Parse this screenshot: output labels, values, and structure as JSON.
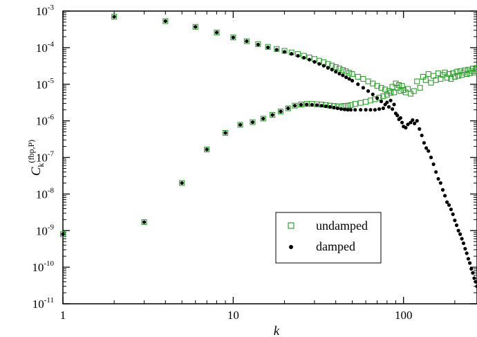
{
  "chart_data": {
    "type": "scatter",
    "xlabel": "k",
    "ylabel": {
      "main": "C",
      "sub": "k",
      "sup": "(fbp,P)"
    },
    "xscale": "log",
    "yscale": "log",
    "xlim": [
      1,
      270
    ],
    "ylim": [
      1e-11,
      0.001
    ],
    "x_ticks": [
      {
        "value": 1,
        "label": "1"
      },
      {
        "value": 10,
        "label": "10"
      },
      {
        "value": 100,
        "label": "100"
      }
    ],
    "y_ticks": [
      {
        "value": 1e-11,
        "base": "10",
        "exp": "-11"
      },
      {
        "value": 1e-10,
        "base": "10",
        "exp": "-10"
      },
      {
        "value": 1e-09,
        "base": "10",
        "exp": "-9"
      },
      {
        "value": 1e-08,
        "base": "10",
        "exp": "-8"
      },
      {
        "value": 1e-07,
        "base": "10",
        "exp": "-7"
      },
      {
        "value": 1e-06,
        "base": "10",
        "exp": "-6"
      },
      {
        "value": 1e-05,
        "base": "10",
        "exp": "-5"
      },
      {
        "value": 0.0001,
        "base": "10",
        "exp": "-4"
      },
      {
        "value": 0.001,
        "base": "10",
        "exp": "-3"
      }
    ],
    "grid": false,
    "legend_position": "bottom-right",
    "series": [
      {
        "name": "undamped",
        "marker": "open-square",
        "color": "#2e9e2e",
        "points": [
          [
            1,
            8e-10
          ],
          [
            2,
            0.0007
          ],
          [
            3,
            1.7e-09
          ],
          [
            4,
            0.00053
          ],
          [
            5,
            2e-08
          ],
          [
            6,
            0.00037
          ],
          [
            7,
            1.65e-07
          ],
          [
            8,
            0.00026
          ],
          [
            9,
            4.7e-07
          ],
          [
            10,
            0.00019
          ],
          [
            11,
            7.8e-07
          ],
          [
            12,
            0.00015
          ],
          [
            13,
            9.2e-07
          ],
          [
            14,
            0.000125
          ],
          [
            15,
            1.15e-06
          ],
          [
            16,
            0.000105
          ],
          [
            17,
            1.45e-06
          ],
          [
            18,
            9.2e-05
          ],
          [
            19,
            1.8e-06
          ],
          [
            20,
            8.2e-05
          ],
          [
            21,
            2.2e-06
          ],
          [
            22,
            7.4e-05
          ],
          [
            23,
            2.6e-06
          ],
          [
            24,
            6.7e-05
          ],
          [
            25,
            2.8e-06
          ],
          [
            26,
            6e-05
          ],
          [
            27,
            2.9e-06
          ],
          [
            28,
            5.4e-05
          ],
          [
            29,
            2.9e-06
          ],
          [
            30,
            4.9e-05
          ],
          [
            31,
            2.85e-06
          ],
          [
            32,
            4.4e-05
          ],
          [
            33,
            2.8e-06
          ],
          [
            34,
            4e-05
          ],
          [
            35,
            2.7e-06
          ],
          [
            36,
            3.6e-05
          ],
          [
            37,
            2.6e-06
          ],
          [
            38,
            3.25e-05
          ],
          [
            39,
            2.55e-06
          ],
          [
            40,
            2.95e-05
          ],
          [
            41,
            2.5e-06
          ],
          [
            42,
            2.7e-05
          ],
          [
            43,
            2.5e-06
          ],
          [
            44,
            2.45e-05
          ],
          [
            45,
            2.55e-06
          ],
          [
            46,
            2.25e-05
          ],
          [
            47,
            2.6e-06
          ],
          [
            48,
            2.05e-05
          ],
          [
            49,
            2.7e-06
          ],
          [
            50,
            1.9e-05
          ],
          [
            52,
            2.9e-06
          ],
          [
            54,
            1.6e-05
          ],
          [
            56,
            3.1e-06
          ],
          [
            58,
            1.4e-05
          ],
          [
            60,
            3.3e-06
          ],
          [
            62,
            1.2e-05
          ],
          [
            64,
            3.6e-06
          ],
          [
            66,
            1.05e-05
          ],
          [
            68,
            3.9e-06
          ],
          [
            70,
            9e-06
          ],
          [
            72,
            4.3e-06
          ],
          [
            74,
            8e-06
          ],
          [
            76,
            4.7e-06
          ],
          [
            78,
            7.2e-06
          ],
          [
            80,
            5.2e-06
          ],
          [
            82,
            6.5e-06
          ],
          [
            84,
            5.8e-06
          ],
          [
            86,
            8.5e-06
          ],
          [
            88,
            6e-06
          ],
          [
            90,
            1.05e-05
          ],
          [
            92,
            8e-06
          ],
          [
            94,
            9.5e-06
          ],
          [
            96,
            6.5e-06
          ],
          [
            98,
            9e-06
          ],
          [
            100,
            7e-06
          ],
          [
            103,
            6e-06
          ],
          [
            106,
            7.5e-06
          ],
          [
            110,
            5.5e-06
          ],
          [
            115,
            6.5e-06
          ],
          [
            120,
            1.2e-05
          ],
          [
            125,
            8e-06
          ],
          [
            130,
            1.6e-05
          ],
          [
            135,
            1.3e-05
          ],
          [
            140,
            1.9e-05
          ],
          [
            145,
            1.1e-05
          ],
          [
            150,
            1.7e-05
          ],
          [
            155,
            1.3e-05
          ],
          [
            160,
            2e-05
          ],
          [
            165,
            1.4e-05
          ],
          [
            170,
            1.8e-05
          ],
          [
            175,
            2.1e-05
          ],
          [
            180,
            1.5e-05
          ],
          [
            185,
            1.9e-05
          ],
          [
            190,
            1.4e-05
          ],
          [
            195,
            2e-05
          ],
          [
            200,
            1.6e-05
          ],
          [
            205,
            2.2e-05
          ],
          [
            210,
            1.7e-05
          ],
          [
            215,
            2.3e-05
          ],
          [
            220,
            1.8e-05
          ],
          [
            225,
            2.1e-05
          ],
          [
            230,
            2.4e-05
          ],
          [
            235,
            1.9e-05
          ],
          [
            240,
            2.5e-05
          ],
          [
            245,
            2e-05
          ],
          [
            250,
            2.3e-05
          ],
          [
            255,
            2.7e-05
          ],
          [
            260,
            2.1e-05
          ],
          [
            265,
            2.6e-05
          ],
          [
            270,
            2.8e-05
          ]
        ]
      },
      {
        "name": "damped",
        "marker": "filled-circle",
        "color": "#000000",
        "points": [
          [
            1,
            8e-10
          ],
          [
            2,
            0.0007
          ],
          [
            3,
            1.7e-09
          ],
          [
            4,
            0.00053
          ],
          [
            5,
            2e-08
          ],
          [
            6,
            0.00037
          ],
          [
            7,
            1.65e-07
          ],
          [
            8,
            0.00026
          ],
          [
            9,
            4.7e-07
          ],
          [
            10,
            0.00019
          ],
          [
            11,
            7.8e-07
          ],
          [
            12,
            0.00015
          ],
          [
            13,
            9.2e-07
          ],
          [
            14,
            0.000122
          ],
          [
            15,
            1.15e-06
          ],
          [
            16,
            0.000102
          ],
          [
            17,
            1.45e-06
          ],
          [
            18,
            8.8e-05
          ],
          [
            19,
            1.8e-06
          ],
          [
            20,
            7.7e-05
          ],
          [
            21,
            2.2e-06
          ],
          [
            22,
            6.8e-05
          ],
          [
            23,
            2.6e-06
          ],
          [
            24,
            6e-05
          ],
          [
            25,
            2.75e-06
          ],
          [
            26,
            5.3e-05
          ],
          [
            27,
            2.8e-06
          ],
          [
            28,
            4.7e-05
          ],
          [
            29,
            2.75e-06
          ],
          [
            30,
            4.1e-05
          ],
          [
            31,
            2.7e-06
          ],
          [
            32,
            3.6e-05
          ],
          [
            33,
            2.6e-06
          ],
          [
            34,
            3.2e-05
          ],
          [
            35,
            2.5e-06
          ],
          [
            36,
            2.8e-05
          ],
          [
            37,
            2.4e-06
          ],
          [
            38,
            2.5e-05
          ],
          [
            39,
            2.3e-06
          ],
          [
            40,
            2.2e-05
          ],
          [
            41,
            2.2e-06
          ],
          [
            42,
            1.95e-05
          ],
          [
            43,
            2.1e-06
          ],
          [
            44,
            1.75e-05
          ],
          [
            45,
            2.05e-06
          ],
          [
            46,
            1.55e-05
          ],
          [
            47,
            2e-06
          ],
          [
            48,
            1.4e-05
          ],
          [
            49,
            2e-06
          ],
          [
            50,
            1.25e-05
          ],
          [
            52,
            2e-06
          ],
          [
            54,
            1e-05
          ],
          [
            56,
            2e-06
          ],
          [
            58,
            8e-06
          ],
          [
            60,
            2e-06
          ],
          [
            62,
            6.5e-06
          ],
          [
            64,
            2e-06
          ],
          [
            66,
            5.3e-06
          ],
          [
            68,
            2e-06
          ],
          [
            70,
            4.2e-06
          ],
          [
            72,
            2.1e-06
          ],
          [
            74,
            3.4e-06
          ],
          [
            76,
            2.2e-06
          ],
          [
            78,
            2.8e-06
          ],
          [
            80,
            3.2e-06
          ],
          [
            82,
            2.4e-06
          ],
          [
            84,
            3.6e-06
          ],
          [
            86,
            2.1e-06
          ],
          [
            88,
            2.8e-06
          ],
          [
            90,
            1.6e-06
          ],
          [
            92,
            1.4e-06
          ],
          [
            94,
            1.1e-06
          ],
          [
            96,
            1.2e-06
          ],
          [
            98,
            9e-07
          ],
          [
            100,
            7e-07
          ],
          [
            103,
            6.5e-07
          ],
          [
            106,
            8e-07
          ],
          [
            110,
            9e-07
          ],
          [
            113,
            1.05e-06
          ],
          [
            116,
            8.5e-07
          ],
          [
            120,
            1e-06
          ],
          [
            124,
            6e-07
          ],
          [
            128,
            4e-07
          ],
          [
            132,
            2.5e-07
          ],
          [
            136,
            1.8e-07
          ],
          [
            140,
            1.5e-07
          ],
          [
            145,
            1e-07
          ],
          [
            150,
            6.5e-08
          ],
          [
            155,
            4e-08
          ],
          [
            160,
            2.6e-08
          ],
          [
            165,
            2e-08
          ],
          [
            170,
            1.3e-08
          ],
          [
            175,
            9e-09
          ],
          [
            180,
            6e-09
          ],
          [
            185,
            5e-09
          ],
          [
            190,
            3.8e-09
          ],
          [
            195,
            2.8e-09
          ],
          [
            200,
            1.9e-09
          ],
          [
            205,
            1.4e-09
          ],
          [
            210,
            1e-09
          ],
          [
            215,
            8e-10
          ],
          [
            220,
            6e-10
          ],
          [
            225,
            4.5e-10
          ],
          [
            230,
            3.2e-10
          ],
          [
            235,
            2.4e-10
          ],
          [
            240,
            1.7e-10
          ],
          [
            245,
            1.3e-10
          ],
          [
            250,
            9e-11
          ],
          [
            255,
            7e-11
          ],
          [
            260,
            5e-11
          ],
          [
            265,
            4e-11
          ],
          [
            270,
            3e-11
          ]
        ]
      }
    ]
  }
}
